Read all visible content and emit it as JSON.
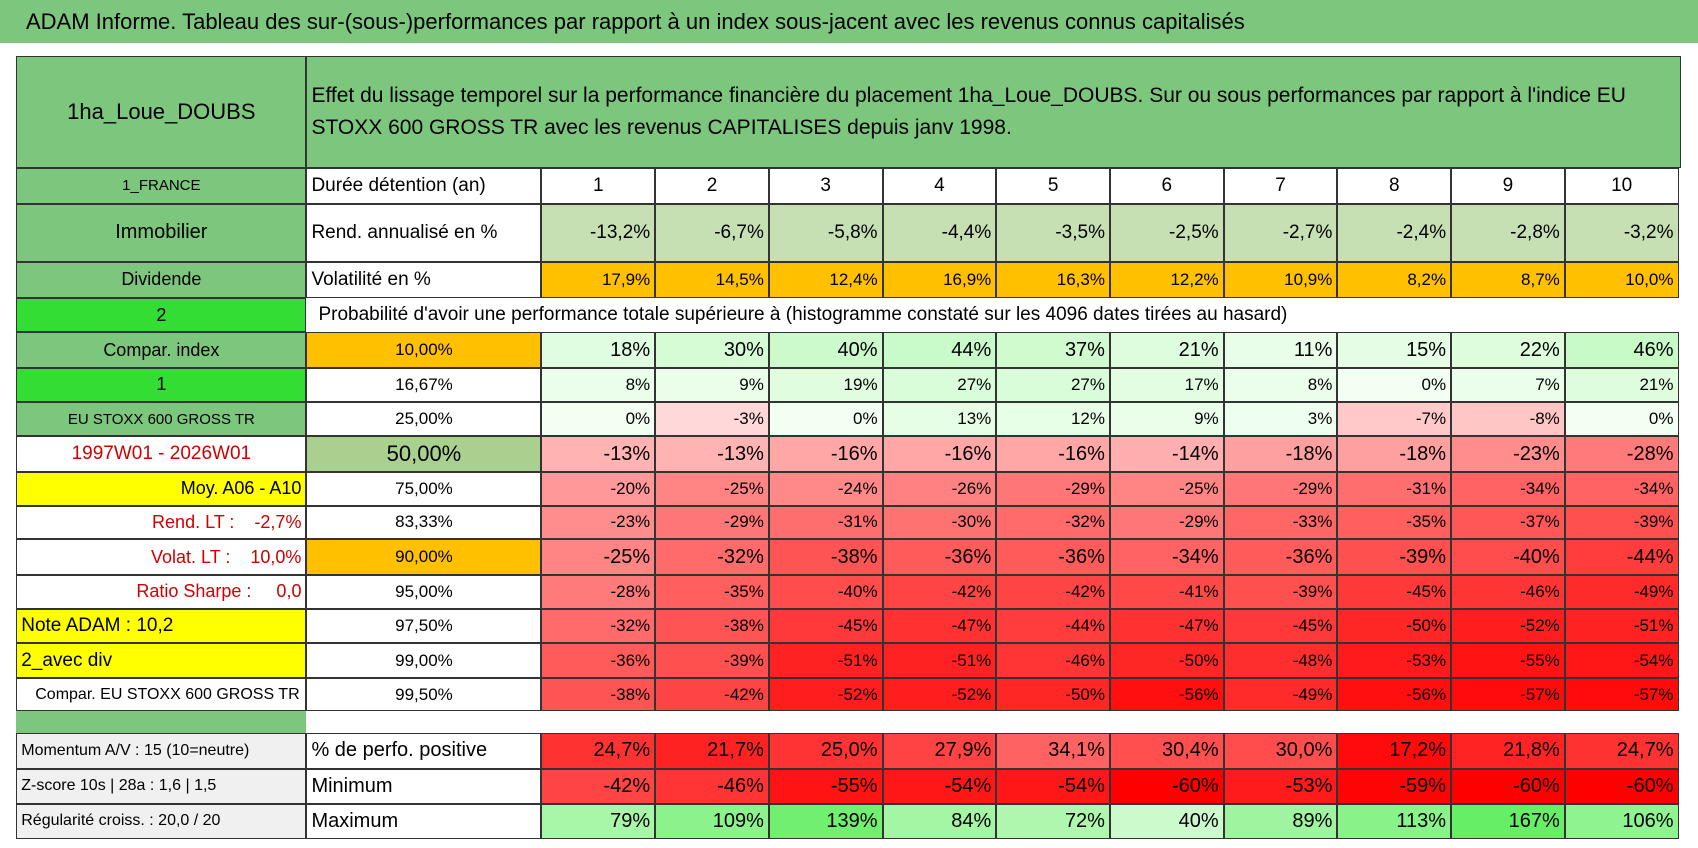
{
  "title": "ADAM Informe. Tableau des sur-(sous-)performances par rapport à un index sous-jacent avec les revenus connus capitalisés",
  "header": {
    "name": "1ha_Loue_DOUBS",
    "description": "Effet du lissage temporel sur la performance financière du placement 1ha_Loue_DOUBS. Sur ou sous performances par rapport à l'indice EU STOXX 600 GROSS TR avec les revenus CAPITALISES depuis janv 1998."
  },
  "rows": [
    {
      "label": "1_FRANCE",
      "head": "Durée détention (an)",
      "cells": [
        1,
        2,
        3,
        4,
        5,
        6,
        7,
        8,
        9,
        10
      ]
    },
    {
      "label": "Immobilier",
      "head": "Rend. annualisé en %",
      "cells": [
        "-13,2%",
        "-6,7%",
        "-5,8%",
        "-4,4%",
        "-3,5%",
        "-2,5%",
        "-2,7%",
        "-2,4%",
        "-2,8%",
        "-3,2%"
      ]
    },
    {
      "label": "Dividende",
      "head": "Volatilité en %",
      "cells": [
        "17,9%",
        "14,5%",
        "12,4%",
        "16,9%",
        "16,3%",
        "12,2%",
        "10,9%",
        "8,2%",
        "8,7%",
        "10,0%"
      ]
    },
    {
      "label": "2",
      "note": "Probabilité d'avoir une performance totale supérieure à (histogramme constaté sur les 4096 dates tirées au hasard)"
    },
    {
      "label": "Compar. index",
      "head": "10,00%",
      "cells": [
        "18%",
        "30%",
        "40%",
        "44%",
        "37%",
        "21%",
        "11%",
        "15%",
        "22%",
        "46%"
      ]
    },
    {
      "label": "1",
      "head": "16,67%",
      "cells": [
        "8%",
        "9%",
        "19%",
        "27%",
        "27%",
        "17%",
        "8%",
        "0%",
        "7%",
        "21%"
      ]
    },
    {
      "label": "EU STOXX 600 GROSS TR",
      "head": "25,00%",
      "cells": [
        "0%",
        "-3%",
        "0%",
        "13%",
        "12%",
        "9%",
        "3%",
        "-7%",
        "-8%",
        "0%"
      ]
    },
    {
      "label": "1997W01 - 2026W01",
      "head": "50,00%",
      "cells": [
        "-13%",
        "-13%",
        "-16%",
        "-16%",
        "-16%",
        "-14%",
        "-18%",
        "-18%",
        "-23%",
        "-28%"
      ]
    },
    {
      "label": "Moy. A06 - A10",
      "head": "75,00%",
      "cells": [
        "-20%",
        "-25%",
        "-24%",
        "-26%",
        "-29%",
        "-25%",
        "-29%",
        "-31%",
        "-34%",
        "-34%"
      ]
    },
    {
      "label": "Rend. LT :    -2,7%",
      "head": "83,33%",
      "cells": [
        "-23%",
        "-29%",
        "-31%",
        "-30%",
        "-32%",
        "-29%",
        "-33%",
        "-35%",
        "-37%",
        "-39%"
      ]
    },
    {
      "label": "Volat. LT :    10,0%",
      "head": "90,00%",
      "cells": [
        "-25%",
        "-32%",
        "-38%",
        "-36%",
        "-36%",
        "-34%",
        "-36%",
        "-39%",
        "-40%",
        "-44%"
      ]
    },
    {
      "label": "Ratio Sharpe :     0,0",
      "head": "95,00%",
      "cells": [
        "-28%",
        "-35%",
        "-40%",
        "-42%",
        "-42%",
        "-41%",
        "-39%",
        "-45%",
        "-46%",
        "-49%"
      ]
    },
    {
      "label": "Note ADAM : 10,2",
      "head": "97,50%",
      "cells": [
        "-32%",
        "-38%",
        "-45%",
        "-47%",
        "-44%",
        "-47%",
        "-45%",
        "-50%",
        "-52%",
        "-51%"
      ]
    },
    {
      "label": "2_avec div",
      "head": "99,00%",
      "cells": [
        "-36%",
        "-39%",
        "-51%",
        "-51%",
        "-46%",
        "-50%",
        "-48%",
        "-53%",
        "-55%",
        "-54%"
      ]
    },
    {
      "label": "Compar. EU STOXX 600 GROSS TR",
      "head": "99,50%",
      "cells": [
        "-38%",
        "-42%",
        "-52%",
        "-52%",
        "-50%",
        "-56%",
        "-49%",
        "-56%",
        "-57%",
        "-57%"
      ]
    },
    {
      "label": "Momentum A/V : 15 (10=neutre)",
      "head": "% de perfo. positive",
      "cells": [
        "24,7%",
        "21,7%",
        "25,0%",
        "27,9%",
        "34,1%",
        "30,4%",
        "30,0%",
        "17,2%",
        "21,8%",
        "24,7%"
      ]
    },
    {
      "label": "Z-score 10s | 28a : 1,6 | 1,5",
      "head": "Minimum",
      "cells": [
        "-42%",
        "-46%",
        "-55%",
        "-54%",
        "-54%",
        "-60%",
        "-53%",
        "-59%",
        "-60%",
        "-60%"
      ]
    },
    {
      "label": "Régularité croiss. : 20,0 / 20",
      "head": "Maximum",
      "cells": [
        "79%",
        "109%",
        "139%",
        "84%",
        "72%",
        "40%",
        "89%",
        "113%",
        "167%",
        "106%"
      ]
    }
  ]
}
